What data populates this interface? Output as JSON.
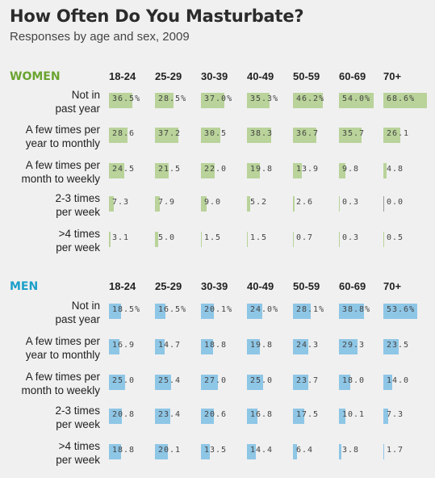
{
  "title": "How Often Do You Masturbate?",
  "subtitle": "Responses by age and sex, 2009",
  "colors": {
    "women": "#6aa42f",
    "women_bar": "#b9d39a",
    "men": "#1b9fc9",
    "men_bar": "#8ec6e6"
  },
  "age_groups": [
    "18-24",
    "25-29",
    "30-39",
    "40-49",
    "50-59",
    "60-69",
    "70+"
  ],
  "chart_data": [
    {
      "type": "table",
      "name": "WOMEN",
      "categories": [
        "18-24",
        "25-29",
        "30-39",
        "40-49",
        "50-59",
        "60-69",
        "70+"
      ],
      "rows": [
        {
          "label": "Not in past year",
          "lines": [
            "Not in",
            "past year"
          ],
          "values": [
            36.5,
            28.5,
            37.0,
            35.3,
            46.2,
            54.0,
            68.6
          ],
          "display": [
            "36.5%",
            "28.5%",
            "37.0%",
            "35.3%",
            "46.2%",
            "54.0%",
            "68.6%"
          ]
        },
        {
          "label": "A few times per year to monthly",
          "lines": [
            "A few times per",
            "year to monthly"
          ],
          "values": [
            28.6,
            37.2,
            30.5,
            38.3,
            36.7,
            35.7,
            26.1
          ],
          "display": [
            "28.6",
            "37.2",
            "30.5",
            "38.3",
            "36.7",
            "35.7",
            "26.1"
          ]
        },
        {
          "label": "A few times per month to weekly",
          "lines": [
            "A few times per",
            "month to weekly"
          ],
          "values": [
            24.5,
            21.5,
            22.0,
            19.8,
            13.9,
            9.8,
            4.8
          ],
          "display": [
            "24.5",
            "21.5",
            "22.0",
            "19.8",
            "13.9",
            "9.8",
            "4.8"
          ]
        },
        {
          "label": "2-3 times per week",
          "lines": [
            "2-3 times",
            "per week"
          ],
          "values": [
            7.3,
            7.9,
            9.0,
            5.2,
            2.6,
            0.3,
            0.0
          ],
          "display": [
            "7.3",
            "7.9",
            "9.0",
            "5.2",
            "2.6",
            "0.3",
            "0.0"
          ]
        },
        {
          "label": ">4 times per week",
          "lines": [
            ">4 times",
            "per week"
          ],
          "values": [
            3.1,
            5.0,
            1.5,
            1.5,
            0.7,
            0.3,
            0.5
          ],
          "display": [
            "3.1",
            "5.0",
            "1.5",
            "1.5",
            "0.7",
            "0.3",
            "0.5"
          ]
        }
      ]
    },
    {
      "type": "table",
      "name": "MEN",
      "categories": [
        "18-24",
        "25-29",
        "30-39",
        "40-49",
        "50-59",
        "60-69",
        "70+"
      ],
      "rows": [
        {
          "label": "Not in past year",
          "lines": [
            "Not in",
            "past year"
          ],
          "values": [
            18.5,
            16.5,
            20.1,
            24.0,
            28.1,
            38.8,
            53.6
          ],
          "display": [
            "18.5%",
            "16.5%",
            "20.1%",
            "24.0%",
            "28.1%",
            "38.8%",
            "53.6%"
          ]
        },
        {
          "label": "A few times per year to monthly",
          "lines": [
            "A few times per",
            "year to monthly"
          ],
          "values": [
            16.9,
            14.7,
            18.8,
            19.8,
            24.3,
            29.3,
            23.5
          ],
          "display": [
            "16.9",
            "14.7",
            "18.8",
            "19.8",
            "24.3",
            "29.3",
            "23.5"
          ]
        },
        {
          "label": "A few times per month to weekly",
          "lines": [
            "A few times per",
            "month to weekly"
          ],
          "values": [
            25.0,
            25.4,
            27.0,
            25.0,
            23.7,
            18.0,
            14.0
          ],
          "display": [
            "25.0",
            "25.4",
            "27.0",
            "25.0",
            "23.7",
            "18.0",
            "14.0"
          ]
        },
        {
          "label": "2-3 times per week",
          "lines": [
            "2-3 times",
            "per week"
          ],
          "values": [
            20.8,
            23.4,
            20.6,
            16.8,
            17.5,
            10.1,
            7.3
          ],
          "display": [
            "20.8",
            "23.4",
            "20.6",
            "16.8",
            "17.5",
            "10.1",
            "7.3"
          ]
        },
        {
          "label": ">4 times per week",
          "lines": [
            ">4 times",
            "per week"
          ],
          "values": [
            18.8,
            20.1,
            13.5,
            14.4,
            6.4,
            3.8,
            1.7
          ],
          "display": [
            "18.8",
            "20.1",
            "13.5",
            "14.4",
            "6.4",
            "3.8",
            "1.7"
          ]
        }
      ]
    }
  ]
}
